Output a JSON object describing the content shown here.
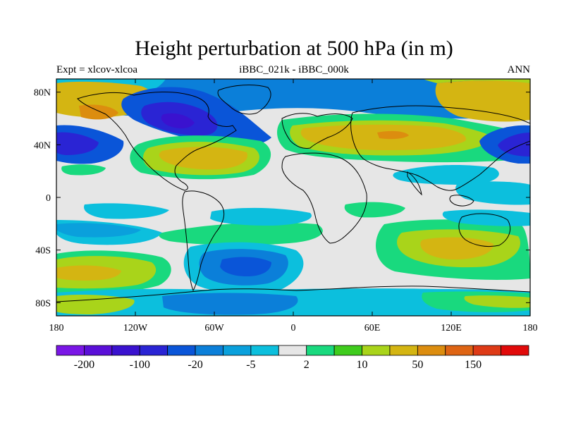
{
  "figure": {
    "title": "Height perturbation at 500 hPa (in m)",
    "left_string": "Expt = xlcov-xlcoa",
    "center_string": "iBBC_021k - iBBC_000k",
    "right_string": "ANN"
  },
  "axes": {
    "lat_labels": [
      "80N",
      "40N",
      "0",
      "40S",
      "80S"
    ],
    "lat_values": [
      80,
      40,
      0,
      -40,
      -80
    ],
    "lon_labels": [
      "180",
      "120W",
      "60W",
      "0",
      "60E",
      "120E",
      "180"
    ],
    "lon_values": [
      -180,
      -120,
      -60,
      0,
      60,
      120,
      180
    ],
    "lat_range": [
      -90,
      90
    ],
    "lon_range": [
      -180,
      180
    ]
  },
  "colorbar": {
    "levels": [
      "-200",
      "-100",
      "-20",
      "-5",
      "2",
      "10",
      "50",
      "150"
    ],
    "colors": [
      "#7a16e6",
      "#5a0fd8",
      "#3a12cf",
      "#2a24d4",
      "#0a55d8",
      "#0b7fd9",
      "#0aa0dc",
      "#0cbfdd",
      "#e6e6e6",
      "#19d97e",
      "#3fcc1d",
      "#a9d41a",
      "#d4b512",
      "#dc8d0f",
      "#de6414",
      "#de3a16",
      "#e10a0a"
    ]
  },
  "palette": {
    "deep_blue": "#2a24d4",
    "blue": "#0a55d8",
    "mid_blue": "#0b7fd9",
    "light_blue": "#0aa0dc",
    "cyan": "#0cbfdd",
    "neutral": "#e6e6e6",
    "green": "#19d97e",
    "yellow_green": "#a9d41a",
    "mustard": "#d4b512",
    "orange": "#dc8d0f"
  }
}
